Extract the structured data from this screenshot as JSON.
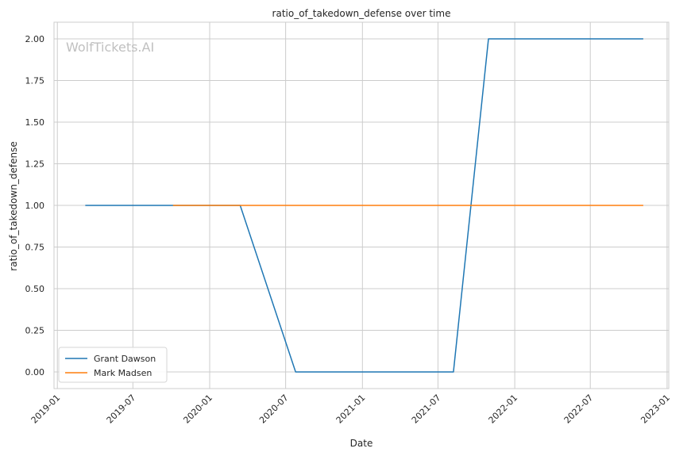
{
  "chart_data": {
    "type": "line",
    "title": "ratio_of_takedown_defense over time",
    "xlabel": "Date",
    "ylabel": "ratio_of_takedown_defense",
    "watermark": "WolfTickets.AI",
    "x_ticks": [
      "2019-01",
      "2019-07",
      "2020-01",
      "2020-07",
      "2021-01",
      "2021-07",
      "2022-01",
      "2022-07",
      "2023-01"
    ],
    "y_ticks": [
      "0.00",
      "0.25",
      "0.50",
      "0.75",
      "1.00",
      "1.25",
      "1.50",
      "1.75",
      "2.00"
    ],
    "xlim": [
      "2018-12-24",
      "2023-01-05"
    ],
    "ylim": [
      -0.1,
      2.1
    ],
    "grid": true,
    "legend_position": "lower-left",
    "series": [
      {
        "name": "Grant Dawson",
        "color": "#1f77b4",
        "x": [
          "2019-03-09",
          "2020-03-14",
          "2020-07-25",
          "2021-08-07",
          "2021-10-30",
          "2022-11-05"
        ],
        "y": [
          1.0,
          1.0,
          0.0,
          0.0,
          2.0,
          2.0
        ]
      },
      {
        "name": "Mark Madsen",
        "color": "#ff7f0e",
        "x": [
          "2019-10-05",
          "2022-11-05"
        ],
        "y": [
          1.0,
          1.0
        ]
      }
    ]
  }
}
